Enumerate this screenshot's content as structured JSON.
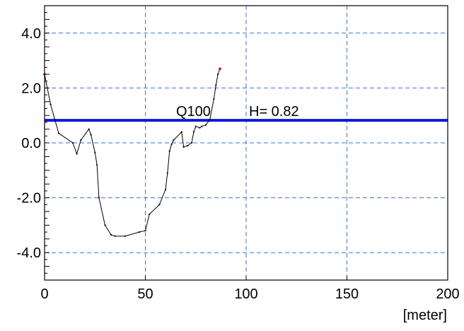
{
  "chart_data": {
    "type": "line",
    "xlabel": "[meter]",
    "ylabel": "",
    "xlim": [
      0,
      200
    ],
    "ylim": [
      -5.0,
      5.0
    ],
    "x_ticks": [
      0,
      50,
      100,
      150,
      200
    ],
    "x_tick_labels": [
      "0",
      "50",
      "100",
      "150",
      "200"
    ],
    "y_ticks": [
      4.0,
      2.0,
      0.0,
      -2.0,
      -4.0
    ],
    "y_tick_labels": [
      "4.0",
      "2.0",
      "0.0",
      "-2.0",
      "-4.0"
    ],
    "grid": true,
    "series": [
      {
        "x": [
          0,
          3,
          7,
          14,
          16,
          18,
          22,
          23,
          25,
          26,
          27,
          30,
          33,
          35,
          40,
          47,
          50,
          52,
          57,
          60,
          61,
          62,
          63,
          64,
          68,
          69,
          71,
          73,
          74,
          75,
          77,
          78,
          80,
          82,
          84,
          85,
          86,
          87
        ],
        "y": [
          2.5,
          1.4,
          0.35,
          0.0,
          -0.4,
          0.1,
          0.5,
          0.3,
          -0.35,
          -0.8,
          -2.0,
          -3.0,
          -3.35,
          -3.4,
          -3.4,
          -3.25,
          -3.2,
          -2.6,
          -2.25,
          -1.7,
          -1.1,
          -0.3,
          -0.05,
          0.1,
          0.4,
          -0.15,
          -0.1,
          0.0,
          0.4,
          0.6,
          0.55,
          0.6,
          0.65,
          0.85,
          1.6,
          2.1,
          2.5,
          2.7
        ],
        "color": "#000000",
        "point_color": "#000000",
        "endpoint_color": "#cc0000"
      }
    ],
    "annotations": [
      {
        "label": "Q100",
        "value_text": "H=  0.82",
        "y": 0.82,
        "color": "#0a1ad6"
      }
    ],
    "grid_color": "#3a76c9"
  }
}
